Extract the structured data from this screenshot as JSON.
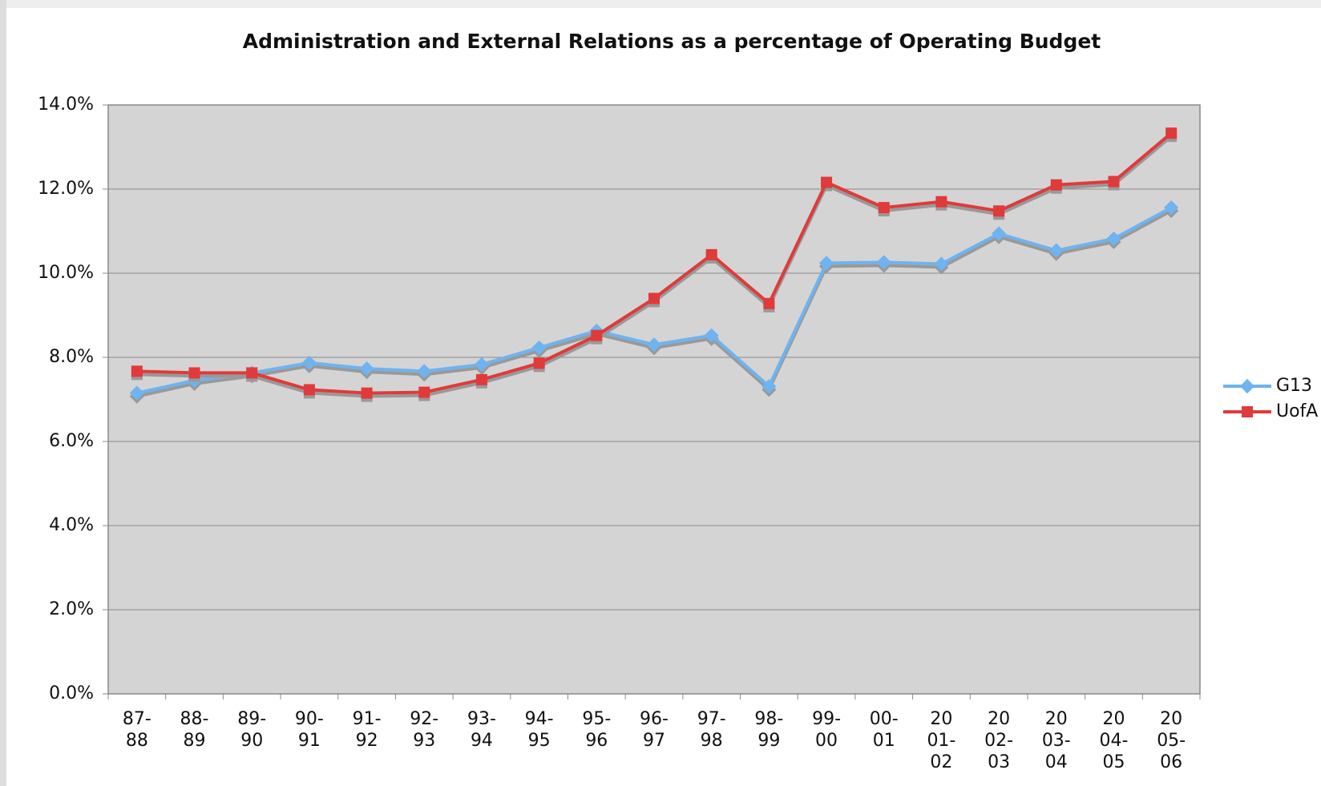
{
  "chart_data": {
    "type": "line",
    "title": "Administration and External Relations as a percentage of Operating Budget",
    "categories": [
      "87-88",
      "88-89",
      "89-90",
      "90-91",
      "91-92",
      "92-93",
      "93-94",
      "94-95",
      "95-96",
      "96-97",
      "97-98",
      "98-99",
      "99-00",
      "00-01",
      "2001-02",
      "2002-03",
      "2003-04",
      "2004-05",
      "2005-06"
    ],
    "series": [
      {
        "name": "G13",
        "color": "#6fb3f0",
        "marker": "diamond",
        "values": [
          7.15,
          7.45,
          7.63,
          7.87,
          7.73,
          7.67,
          7.83,
          8.23,
          8.63,
          8.3,
          8.52,
          7.31,
          10.24,
          10.26,
          10.22,
          10.94,
          10.54,
          10.82,
          11.56
        ]
      },
      {
        "name": "UofA",
        "color": "#e03a3a",
        "marker": "square",
        "values": [
          7.67,
          7.63,
          7.63,
          7.23,
          7.15,
          7.17,
          7.47,
          7.86,
          8.52,
          9.4,
          10.44,
          9.28,
          12.16,
          11.56,
          11.7,
          11.48,
          12.1,
          12.18,
          13.33
        ]
      }
    ],
    "ylim": [
      0,
      14
    ],
    "yticks": [
      {
        "value": 0,
        "label": "0.0%"
      },
      {
        "value": 2,
        "label": "2.0%"
      },
      {
        "value": 4,
        "label": "4.0%"
      },
      {
        "value": 6,
        "label": "6.0%"
      },
      {
        "value": 8,
        "label": "8.0%"
      },
      {
        "value": 10,
        "label": "10.0%"
      },
      {
        "value": 12,
        "label": "12.0%"
      },
      {
        "value": 14,
        "label": "14.0%"
      }
    ],
    "grid": true,
    "legend": "right",
    "plot_background": "#d4d4d4"
  }
}
